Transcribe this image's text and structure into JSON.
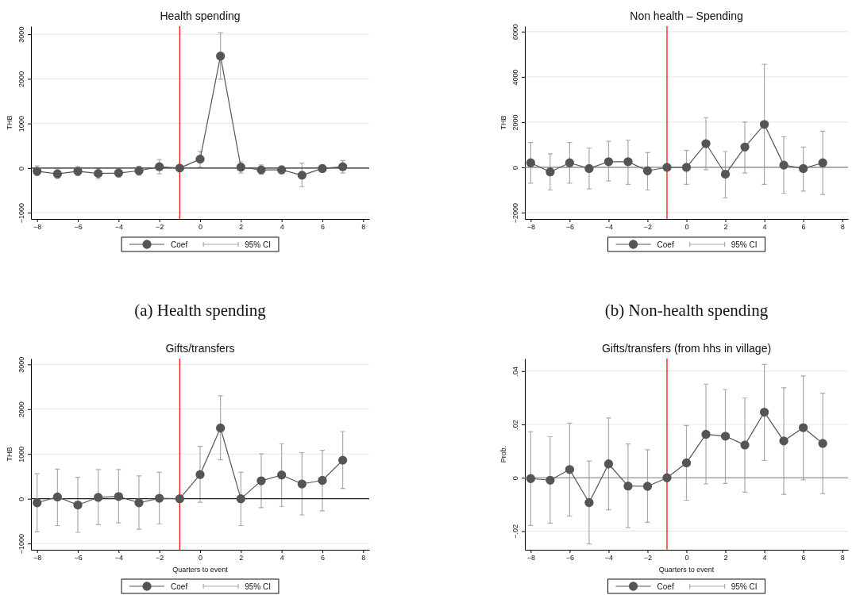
{
  "chart_data": [
    {
      "type": "line",
      "title": "Health spending",
      "ylabel": "THB",
      "annotations": [
        "95% CI",
        "(a) Health spending"
      ],
      "x": [
        -8,
        -7,
        -6,
        -5,
        -4,
        -3,
        -2,
        -1,
        0,
        1,
        2,
        3,
        4,
        5,
        6,
        7
      ],
      "xlim": [
        -8.3,
        8.3
      ],
      "xticks": [
        {
          "value": -8,
          "label": "−8"
        },
        {
          "value": -6,
          "label": "−6"
        },
        {
          "value": -4,
          "label": "−4"
        },
        {
          "value": -2,
          "label": "−2"
        },
        0,
        2,
        4,
        6,
        8
      ],
      "ylim": [
        -1140,
        3180
      ],
      "yticks": [
        {
          "value": -1000,
          "label": "−1000"
        },
        0,
        1000,
        2000,
        3000
      ],
      "grid": "y",
      "legend": "bottom",
      "marker": "circle",
      "line_style": "solid",
      "ref_lines": [
        {
          "axis": "x",
          "value": -1,
          "color": "#ff0000"
        },
        {
          "axis": "y",
          "value": 0,
          "color": "#222222"
        }
      ],
      "series": [
        {
          "name": "Coef",
          "color": "#555555",
          "values": [
            -70,
            -130,
            -70,
            -120,
            -110,
            -60,
            30,
            0,
            200,
            2510,
            20,
            -40,
            -40,
            -160,
            -10,
            30
          ],
          "errors": [
            [
              -170,
              50
            ],
            [
              -230,
              -20
            ],
            [
              -170,
              30
            ],
            [
              -240,
              -10
            ],
            [
              -200,
              -20
            ],
            [
              -160,
              40
            ],
            [
              -130,
              190
            ],
            null,
            [
              20,
              380
            ],
            [
              1990,
              3030
            ],
            [
              -110,
              140
            ],
            [
              -140,
              70
            ],
            [
              -130,
              50
            ],
            [
              -420,
              110
            ],
            [
              -90,
              70
            ],
            [
              -110,
              170
            ]
          ]
        }
      ]
    },
    {
      "type": "line",
      "title": "Non health – Spending",
      "ylabel": "THB",
      "annotations": [
        "95% CI",
        "(b) Non-health spending"
      ],
      "x": [
        -8,
        -7,
        -6,
        -5,
        -4,
        -3,
        -2,
        -1,
        0,
        1,
        2,
        3,
        4,
        5,
        6,
        7
      ],
      "xlim": [
        -8.3,
        8.3
      ],
      "xticks": [
        {
          "value": -8,
          "label": "−8"
        },
        {
          "value": -6,
          "label": "−6"
        },
        {
          "value": -4,
          "label": "−4"
        },
        {
          "value": -2,
          "label": "−2"
        },
        0,
        2,
        4,
        6,
        8
      ],
      "ylim": [
        -2280,
        6240
      ],
      "yticks": [
        {
          "value": -2000,
          "label": "−2000"
        },
        0,
        2000,
        4000,
        6000
      ],
      "grid": "y",
      "legend": "bottom",
      "marker": "circle",
      "line_style": "solid",
      "ref_lines": [
        {
          "axis": "x",
          "value": -1,
          "color": "#ff0000"
        },
        {
          "axis": "y",
          "value": 0,
          "color": "#808080"
        }
      ],
      "series": [
        {
          "name": "Coef",
          "color": "#555555",
          "values": [
            200,
            -200,
            200,
            -50,
            250,
            250,
            -150,
            0,
            0,
            1050,
            -300,
            900,
            1900,
            100,
            -50,
            200
          ],
          "errors": [
            [
              -700,
              1100
            ],
            [
              -1000,
              600
            ],
            [
              -700,
              1100
            ],
            [
              -950,
              850
            ],
            [
              -600,
              1150
            ],
            [
              -750,
              1200
            ],
            [
              -1000,
              650
            ],
            null,
            [
              -750,
              750
            ],
            [
              -100,
              2200
            ],
            [
              -1350,
              700
            ],
            [
              -250,
              2000
            ],
            [
              -750,
              4550
            ],
            [
              -1150,
              1350
            ],
            [
              -1050,
              900
            ],
            [
              -1200,
              1600
            ]
          ]
        }
      ]
    },
    {
      "type": "line",
      "title": "Gifts/transfers",
      "ylabel": "THB",
      "xlabel": "Quarters to event",
      "annotations": [
        "95% CI"
      ],
      "x": [
        -8,
        -7,
        -6,
        -5,
        -4,
        -3,
        -2,
        -1,
        0,
        1,
        2,
        3,
        4,
        5,
        6,
        7
      ],
      "xlim": [
        -8.3,
        8.3
      ],
      "xticks": [
        {
          "value": -8,
          "label": "−8"
        },
        {
          "value": -6,
          "label": "−6"
        },
        {
          "value": -4,
          "label": "−4"
        },
        {
          "value": -2,
          "label": "−2"
        },
        0,
        2,
        4,
        6,
        8
      ],
      "ylim": [
        -1140,
        3130
      ],
      "yticks": [
        {
          "value": -1000,
          "label": "−1000"
        },
        0,
        1000,
        2000,
        3000
      ],
      "grid": "y",
      "legend": "bottom",
      "marker": "circle",
      "line_style": "solid",
      "ref_lines": [
        {
          "axis": "x",
          "value": -1,
          "color": "#ff0000"
        },
        {
          "axis": "y",
          "value": 0,
          "color": "#222222"
        }
      ],
      "series": [
        {
          "name": "Coef",
          "color": "#555555",
          "values": [
            -90,
            40,
            -140,
            30,
            50,
            -90,
            10,
            0,
            540,
            1580,
            0,
            400,
            530,
            330,
            410,
            860
          ],
          "errors": [
            [
              -740,
              560
            ],
            [
              -600,
              660
            ],
            [
              -750,
              480
            ],
            [
              -580,
              650
            ],
            [
              -540,
              650
            ],
            [
              -680,
              510
            ],
            [
              -560,
              590
            ],
            null,
            [
              -80,
              1170
            ],
            [
              870,
              2300
            ],
            [
              -600,
              590
            ],
            [
              -200,
              1000
            ],
            [
              -170,
              1230
            ],
            [
              -360,
              1030
            ],
            [
              -270,
              1080
            ],
            [
              230,
              1500
            ]
          ]
        }
      ]
    },
    {
      "type": "line",
      "title": "Gifts/transfers (from hhs in village)",
      "ylabel": "Prob.",
      "xlabel": "Quarters to event",
      "annotations": [
        "95% CI"
      ],
      "x": [
        -8,
        -7,
        -6,
        -5,
        -4,
        -3,
        -2,
        -1,
        0,
        1,
        2,
        3,
        4,
        5,
        6,
        7
      ],
      "xlim": [
        -8.3,
        8.3
      ],
      "xticks": [
        {
          "value": -8,
          "label": "−8"
        },
        {
          "value": -6,
          "label": "−6"
        },
        {
          "value": -4,
          "label": "−4"
        },
        {
          "value": -2,
          "label": "−2"
        },
        0,
        2,
        4,
        6,
        8
      ],
      "ylim": [
        -0.027,
        0.0447
      ],
      "yticks": [
        {
          "value": -0.02,
          "label": "−.02"
        },
        0,
        {
          "value": 0.02,
          "label": ".02"
        },
        {
          "value": 0.04,
          "label": ".04"
        }
      ],
      "grid": "y",
      "legend": "bottom",
      "marker": "circle",
      "line_style": "solid",
      "ref_lines": [
        {
          "axis": "x",
          "value": -1,
          "color": "#ff0000"
        },
        {
          "axis": "y",
          "value": 0,
          "color": "#808080"
        }
      ],
      "series": [
        {
          "name": "Coef",
          "color": "#555555",
          "values": [
            -0.0003,
            -0.0009,
            0.0031,
            -0.0093,
            0.0052,
            -0.0031,
            -0.0032,
            0,
            0.0056,
            0.0163,
            0.0156,
            0.0123,
            0.0246,
            0.0138,
            0.0188,
            0.0129
          ],
          "errors": [
            [
              -0.0179,
              0.0173
            ],
            [
              -0.017,
              0.0154
            ],
            [
              -0.0143,
              0.0205
            ],
            [
              -0.0248,
              0.0063
            ],
            [
              -0.012,
              0.0224
            ],
            [
              -0.0187,
              0.0127
            ],
            [
              -0.0167,
              0.0105
            ],
            null,
            [
              -0.0084,
              0.0196
            ],
            [
              -0.0023,
              0.0351
            ],
            [
              -0.0021,
              0.0331
            ],
            [
              -0.0054,
              0.0299
            ],
            [
              0.0065,
              0.0425
            ],
            [
              -0.0062,
              0.0337
            ],
            [
              -0.0008,
              0.0382
            ],
            [
              -0.0059,
              0.0317
            ]
          ]
        }
      ]
    }
  ]
}
